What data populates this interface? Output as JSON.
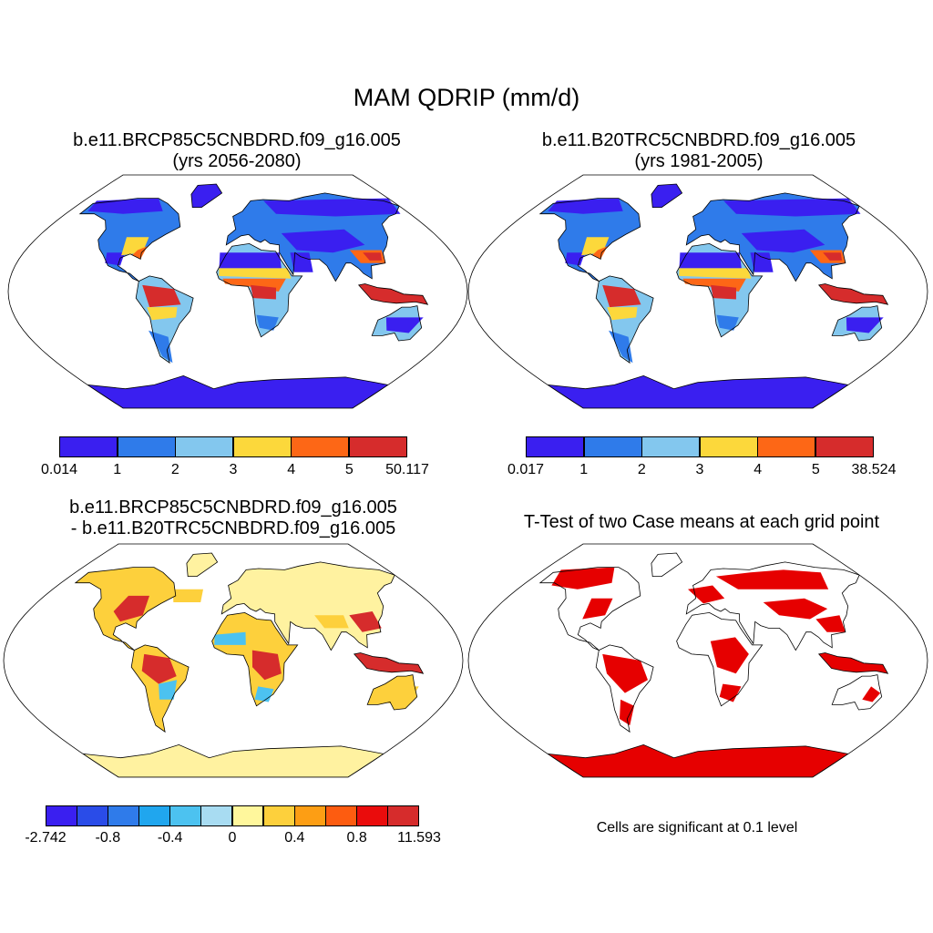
{
  "figure": {
    "main_title": "MAM QDRIP (mm/d)"
  },
  "panels": {
    "p1": {
      "title_line1": "b.e11.BRCP85C5CNBDRD.f09_g16.005",
      "title_line2": "(yrs 2056-2080)",
      "colorbar": {
        "colors": [
          "#3a1ff0",
          "#2f7bea",
          "#83c7ee",
          "#fcd83b",
          "#fd6716",
          "#d62c2c"
        ],
        "labels": [
          "0.014",
          "1",
          "2",
          "3",
          "4",
          "5",
          "50.117"
        ]
      }
    },
    "p2": {
      "title_line1": "b.e11.B20TRC5CNBDRD.f09_g16.005",
      "title_line2": "(yrs 1981-2005)",
      "colorbar": {
        "colors": [
          "#3a1ff0",
          "#2f7bea",
          "#83c7ee",
          "#fcd83b",
          "#fd6716",
          "#d62c2c"
        ],
        "labels": [
          "0.017",
          "1",
          "2",
          "3",
          "4",
          "5",
          "38.524"
        ]
      }
    },
    "p3": {
      "title_line1": "b.e11.BRCP85C5CNBDRD.f09_g16.005",
      "title_line2": "- b.e11.B20TRC5CNBDRD.f09_g16.005",
      "colorbar": {
        "colors": [
          "#3a1ff0",
          "#2a4ce8",
          "#2f7bea",
          "#20a6ee",
          "#4cc2f0",
          "#a8dcf2",
          "#fff79c",
          "#fdd03c",
          "#fd9e14",
          "#fd5c10",
          "#ea0c0c",
          "#d62c2c"
        ],
        "labels": [
          "-2.742",
          "-0.8",
          "-0.4",
          "0",
          "0.4",
          "0.8",
          "11.593"
        ]
      }
    },
    "p4": {
      "title_line1": "T-Test of two Case means at each grid point",
      "note": "Cells are significant at 0.1 level",
      "significance_color": "#e60000"
    }
  },
  "map_colors": {
    "dry": "#3a1ff0",
    "mid": "#2f7bea",
    "light": "#83c7ee",
    "yellow": "#fcd83b",
    "orange": "#fd6716",
    "red": "#d62c2c",
    "diff_neutral": "#fff2a0",
    "diff_pos": "#fdd03c",
    "diff_strong": "#d62c2c",
    "diff_neg": "#4cc2f0"
  }
}
